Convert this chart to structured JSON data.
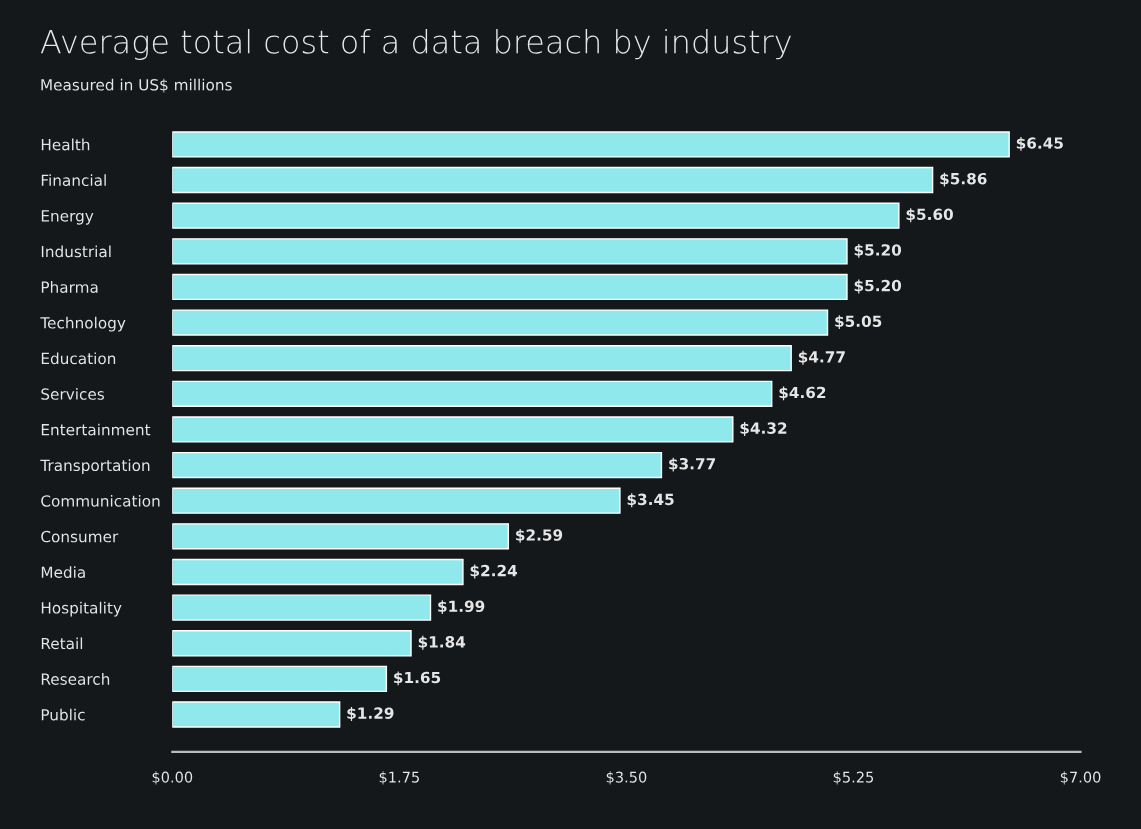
{
  "chart_data": {
    "type": "bar",
    "orientation": "horizontal",
    "title": "Average total cost of a data breach by industry",
    "subtitle": "Measured in US$ millions",
    "categories": [
      "Health",
      "Financial",
      "Energy",
      "Industrial",
      "Pharma",
      "Technology",
      "Education",
      "Services",
      "Entertainment",
      "Transportation",
      "Communication",
      "Consumer",
      "Media",
      "Hospitality",
      "Retail",
      "Research",
      "Public"
    ],
    "values": [
      6.45,
      5.86,
      5.6,
      5.2,
      5.2,
      5.05,
      4.77,
      4.62,
      4.32,
      3.77,
      3.45,
      2.59,
      2.24,
      1.99,
      1.84,
      1.65,
      1.29
    ],
    "value_labels": [
      "$6.45",
      "$5.86",
      "$5.60",
      "$5.20",
      "$5.20",
      "$5.05",
      "$4.77",
      "$4.62",
      "$4.32",
      "$3.77",
      "$3.45",
      "$2.59",
      "$2.24",
      "$1.99",
      "$1.84",
      "$1.65",
      "$1.29"
    ],
    "color": "#8fe9ec",
    "xlim": [
      0,
      7
    ],
    "xticks": [
      {
        "value": 0,
        "label": "$0.00"
      },
      {
        "value": 1.75,
        "label": "$1.75"
      },
      {
        "value": 3.5,
        "label": "$3.50"
      },
      {
        "value": 5.25,
        "label": "$5.25"
      },
      {
        "value": 7,
        "label": "$7.00"
      }
    ],
    "grid": false,
    "legend": false
  }
}
